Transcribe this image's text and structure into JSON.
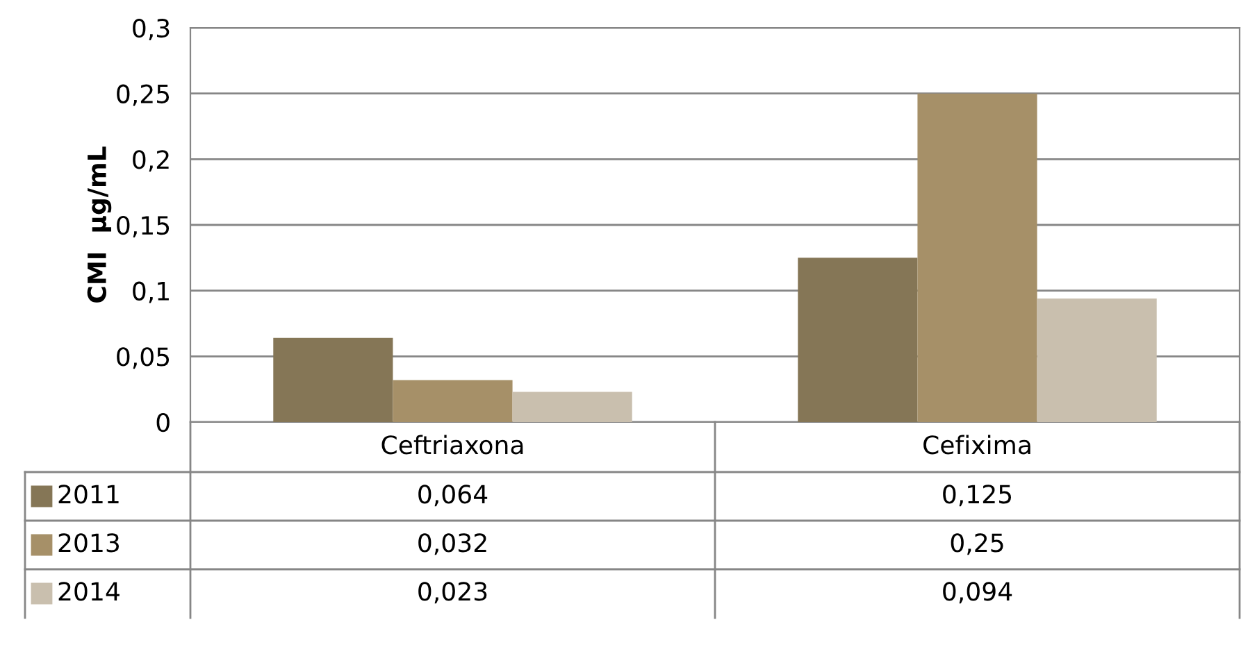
{
  "chart_data": {
    "type": "bar",
    "ylabel": "CMI  µg/mL",
    "categories": [
      "Ceftriaxona",
      "Cefixima"
    ],
    "series": [
      {
        "name": "2011",
        "color": "#857656",
        "values": [
          0.064,
          0.125
        ],
        "value_labels": [
          "0,064",
          "0,125"
        ]
      },
      {
        "name": "2013",
        "color": "#a69068",
        "values": [
          0.032,
          0.25
        ],
        "value_labels": [
          "0,032",
          "0,25"
        ]
      },
      {
        "name": "2014",
        "color": "#c9bfae",
        "values": [
          0.023,
          0.094
        ],
        "value_labels": [
          "0,023",
          "0,094"
        ]
      }
    ],
    "ylim": [
      0,
      0.3
    ],
    "yticks": [
      {
        "value": 0,
        "label": "0"
      },
      {
        "value": 0.05,
        "label": "0,05"
      },
      {
        "value": 0.1,
        "label": "0,1"
      },
      {
        "value": 0.15,
        "label": "0,15"
      },
      {
        "value": 0.2,
        "label": "0,2"
      },
      {
        "value": 0.25,
        "label": "0,25"
      },
      {
        "value": 0.3,
        "label": "0,3"
      }
    ],
    "grid": "y",
    "legend": "bottom"
  }
}
